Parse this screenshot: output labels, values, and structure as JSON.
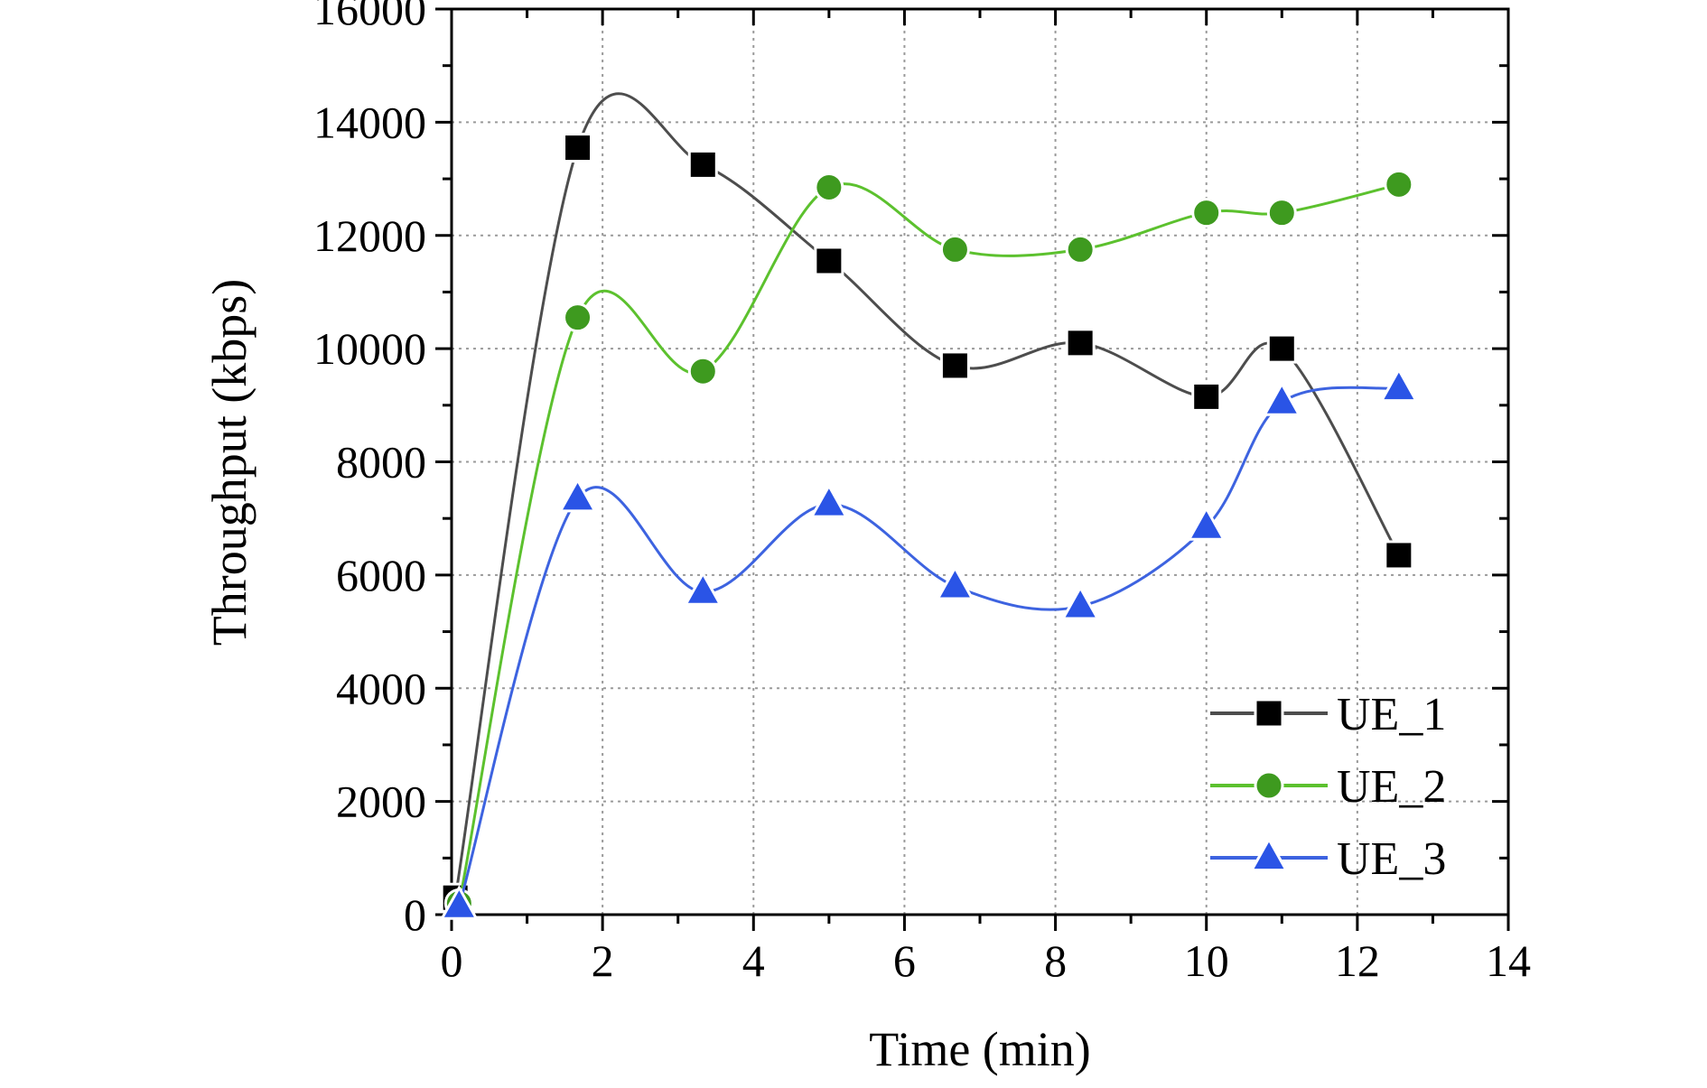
{
  "chart_data": {
    "type": "line",
    "title": "",
    "xlabel": "Time (min)",
    "ylabel": "Throughput (kbps)",
    "xlim": [
      0,
      14
    ],
    "ylim": [
      0,
      16000
    ],
    "xticks": [
      0,
      2,
      4,
      6,
      8,
      10,
      12,
      14
    ],
    "yticks": [
      0,
      2000,
      4000,
      6000,
      8000,
      10000,
      12000,
      14000,
      16000
    ],
    "grid": true,
    "legend_position": "bottom-right",
    "series": [
      {
        "name": "UE_1",
        "marker": "square",
        "line_color": "#4d4d4d",
        "marker_color": "#000000",
        "x": [
          0.05,
          1.67,
          3.33,
          5.0,
          6.67,
          8.33,
          10.0,
          11.0,
          12.55
        ],
        "y": [
          300,
          13550,
          13250,
          11550,
          9700,
          10100,
          9150,
          10000,
          6350
        ]
      },
      {
        "name": "UE_2",
        "marker": "circle",
        "line_color": "#5cc12e",
        "marker_color": "#3e9a1f",
        "x": [
          0.1,
          1.67,
          3.33,
          5.0,
          6.67,
          8.33,
          10.0,
          11.0,
          12.55
        ],
        "y": [
          200,
          10550,
          9600,
          12850,
          11750,
          11750,
          12400,
          12400,
          12900
        ]
      },
      {
        "name": "UE_3",
        "marker": "triangle",
        "line_color": "#3d63e0",
        "marker_color": "#2a54e6",
        "x": [
          0.1,
          1.67,
          3.33,
          5.0,
          6.67,
          8.33,
          10.0,
          11.0,
          12.55
        ],
        "y": [
          150,
          7350,
          5700,
          7250,
          5800,
          5450,
          6850,
          9050,
          9300
        ]
      }
    ]
  }
}
